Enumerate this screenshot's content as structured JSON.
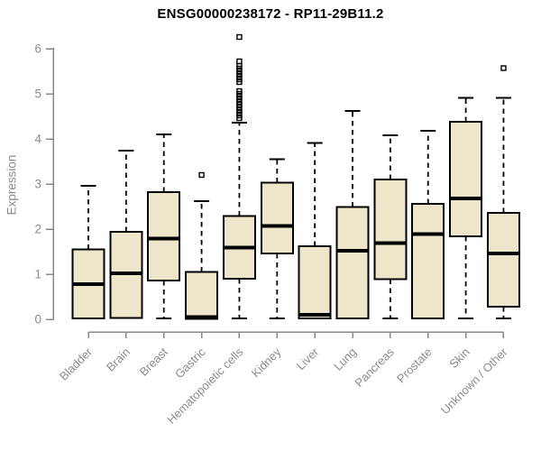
{
  "header": {
    "title": "ENSG00000238172 - RP11-29B11.2"
  },
  "axes": {
    "y_label": "Expression"
  },
  "colors": {
    "background": "#ffffff",
    "box_fill": "#EDE6CB",
    "box_stroke": "#000000",
    "median_stroke": "#000000",
    "whisker_stroke": "#000000",
    "outlier_stroke": "#000000",
    "axis_line": "#898989",
    "tick_text": "#8c8c8c",
    "title_text": "#000000"
  },
  "chart_data": {
    "type": "box",
    "title": "ENSG00000238172 - RP11-29B11.2",
    "xlabel": "",
    "ylabel": "Expression",
    "ylim": [
      0,
      6.35
    ],
    "yticks": [
      0,
      1,
      2,
      3,
      4,
      5,
      6
    ],
    "grid": false,
    "legend": "none",
    "categories": [
      "Bladder",
      "Brain",
      "Breast",
      "Gastric",
      "Hematopoietic cells",
      "Kidney",
      "Liver",
      "Lung",
      "Pancreas",
      "Prostate",
      "Skin",
      "Unknown / Other"
    ],
    "series": [
      {
        "name": "Bladder",
        "whisker_low": 0.02,
        "q1": 0.02,
        "median": 0.78,
        "q3": 1.55,
        "whisker_high": 2.96,
        "outliers": []
      },
      {
        "name": "Brain",
        "whisker_low": 0.03,
        "q1": 0.03,
        "median": 1.02,
        "q3": 1.94,
        "whisker_high": 3.74,
        "outliers": []
      },
      {
        "name": "Breast",
        "whisker_low": 0.02,
        "q1": 0.86,
        "median": 1.79,
        "q3": 2.82,
        "whisker_high": 4.1,
        "outliers": []
      },
      {
        "name": "Gastric",
        "whisker_low": 0.01,
        "q1": 0.01,
        "median": 0.05,
        "q3": 1.05,
        "whisker_high": 2.62,
        "outliers": [
          3.2
        ]
      },
      {
        "name": "Hematopoietic cells",
        "whisker_low": 0.02,
        "q1": 0.9,
        "median": 1.59,
        "q3": 2.29,
        "whisker_high": 4.36,
        "outliers": [
          6.26,
          5.72,
          5.62,
          5.56,
          5.5,
          5.44,
          5.38,
          5.32,
          5.26,
          5.06,
          5.0,
          4.94,
          4.88,
          4.82,
          4.76,
          4.7,
          4.64,
          4.58,
          4.52,
          4.46
        ]
      },
      {
        "name": "Kidney",
        "whisker_low": 0.02,
        "q1": 1.46,
        "median": 2.07,
        "q3": 3.03,
        "whisker_high": 3.55,
        "outliers": []
      },
      {
        "name": "Liver",
        "whisker_low": 0.02,
        "q1": 0.02,
        "median": 0.1,
        "q3": 1.62,
        "whisker_high": 3.91,
        "outliers": []
      },
      {
        "name": "Lung",
        "whisker_low": 0.02,
        "q1": 0.02,
        "median": 1.52,
        "q3": 2.49,
        "whisker_high": 4.62,
        "outliers": []
      },
      {
        "name": "Pancreas",
        "whisker_low": 0.02,
        "q1": 0.89,
        "median": 1.69,
        "q3": 3.1,
        "whisker_high": 4.08,
        "outliers": []
      },
      {
        "name": "Prostate",
        "whisker_low": 0.02,
        "q1": 0.02,
        "median": 1.89,
        "q3": 2.56,
        "whisker_high": 4.18,
        "outliers": []
      },
      {
        "name": "Skin",
        "whisker_low": 0.02,
        "q1": 1.84,
        "median": 2.68,
        "q3": 4.38,
        "whisker_high": 4.91,
        "outliers": []
      },
      {
        "name": "Unknown / Other",
        "whisker_low": 0.02,
        "q1": 0.28,
        "median": 1.46,
        "q3": 2.36,
        "whisker_high": 4.91,
        "outliers": [
          5.57
        ]
      }
    ]
  }
}
